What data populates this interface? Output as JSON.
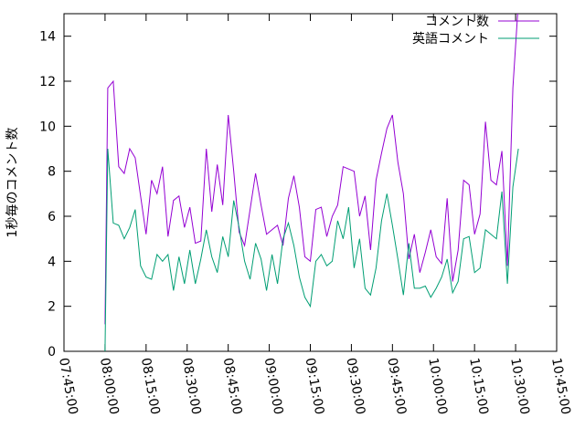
{
  "chart_data": {
    "type": "line",
    "y_label": "1秒毎のコメント数",
    "x": [
      "08:00:00",
      "08:01:00",
      "08:03:00",
      "08:05:00",
      "08:07:00",
      "08:09:00",
      "08:11:00",
      "08:13:00",
      "08:15:00",
      "08:17:00",
      "08:19:00",
      "08:21:00",
      "08:23:00",
      "08:25:00",
      "08:27:00",
      "08:29:00",
      "08:31:00",
      "08:33:00",
      "08:35:00",
      "08:37:00",
      "08:39:00",
      "08:41:00",
      "08:43:00",
      "08:45:00",
      "08:47:00",
      "08:49:00",
      "08:51:00",
      "08:53:00",
      "08:55:00",
      "08:57:00",
      "08:59:00",
      "09:01:00",
      "09:03:00",
      "09:05:00",
      "09:07:00",
      "09:09:00",
      "09:11:00",
      "09:13:00",
      "09:15:00",
      "09:17:00",
      "09:19:00",
      "09:21:00",
      "09:23:00",
      "09:25:00",
      "09:27:00",
      "09:29:00",
      "09:31:00",
      "09:33:00",
      "09:35:00",
      "09:37:00",
      "09:39:00",
      "09:41:00",
      "09:43:00",
      "09:45:00",
      "09:47:00",
      "09:49:00",
      "09:51:00",
      "09:53:00",
      "09:55:00",
      "09:57:00",
      "09:59:00",
      "10:01:00",
      "10:03:00",
      "10:05:00",
      "10:07:00",
      "10:09:00",
      "10:11:00",
      "10:13:00",
      "10:15:00",
      "10:17:00",
      "10:19:00",
      "10:21:00",
      "10:23:00",
      "10:25:00",
      "10:27:00",
      "10:29:00",
      "10:31:00"
    ],
    "series": [
      {
        "name": "コメント数",
        "color": "#9400d3",
        "values": [
          1.2,
          11.7,
          12.0,
          8.2,
          7.9,
          9.0,
          8.6,
          6.9,
          5.2,
          7.6,
          7.0,
          8.2,
          5.1,
          6.7,
          6.9,
          5.5,
          6.4,
          4.8,
          4.9,
          9.0,
          6.2,
          8.3,
          6.5,
          10.5,
          8.0,
          5.3,
          4.7,
          6.3,
          7.9,
          6.5,
          5.2,
          5.4,
          5.6,
          4.7,
          6.8,
          7.8,
          6.4,
          4.2,
          4.0,
          6.3,
          6.4,
          5.1,
          6.0,
          6.5,
          8.2,
          8.1,
          8.0,
          6.0,
          6.9,
          4.5,
          7.6,
          8.8,
          9.9,
          10.5,
          8.4,
          7.0,
          4.1,
          5.2,
          3.5,
          4.4,
          5.4,
          4.2,
          3.9,
          6.8,
          3.1,
          4.5,
          7.6,
          7.4,
          5.2,
          6.1,
          10.2,
          7.6,
          7.4,
          8.9,
          3.8,
          11.7,
          15.5
        ]
      },
      {
        "name": "英語コメント",
        "color": "#009e73",
        "values": [
          0,
          9.0,
          5.7,
          5.6,
          5.0,
          5.5,
          6.3,
          3.8,
          3.3,
          3.2,
          4.3,
          4.0,
          4.3,
          2.7,
          4.2,
          3.0,
          4.5,
          3.0,
          4.1,
          5.4,
          4.2,
          3.5,
          5.1,
          4.2,
          6.7,
          5.5,
          4.0,
          3.2,
          4.8,
          4.1,
          2.7,
          4.3,
          3.0,
          5.0,
          5.7,
          4.7,
          3.3,
          2.4,
          2.0,
          4.0,
          4.3,
          3.8,
          4.0,
          5.8,
          5.0,
          6.4,
          3.7,
          5.0,
          2.8,
          2.5,
          3.7,
          5.8,
          7.0,
          5.6,
          4.1,
          2.5,
          4.8,
          2.8,
          2.8,
          2.9,
          2.4,
          2.8,
          3.3,
          4.1,
          2.6,
          3.1,
          5.0,
          5.1,
          3.5,
          3.7,
          5.4,
          5.2,
          5.0,
          7.1,
          3.0,
          7.3,
          9.0
        ]
      }
    ],
    "xlim": [
      "07:45:00",
      "10:45:00"
    ],
    "xticks": [
      "07:45:00",
      "08:00:00",
      "08:15:00",
      "08:30:00",
      "08:45:00",
      "09:00:00",
      "09:15:00",
      "09:30:00",
      "09:45:00",
      "10:00:00",
      "10:15:00",
      "10:30:00",
      "10:45:00"
    ],
    "ylim": [
      0,
      15
    ],
    "yticks": [
      0,
      2,
      4,
      6,
      8,
      10,
      12,
      14
    ],
    "legend": "top-right"
  }
}
